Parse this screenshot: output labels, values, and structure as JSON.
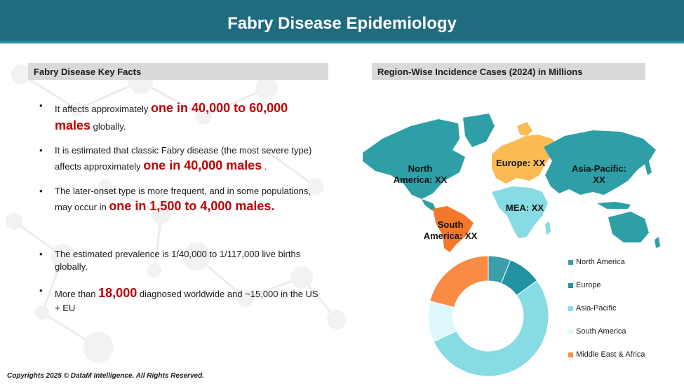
{
  "header": {
    "title": "Fabry Disease Epidemiology"
  },
  "left": {
    "title": "Fabry Disease Key Facts",
    "facts": [
      {
        "pre": "It affects approximately ",
        "hl": "one in 40,000 to 60,000 males",
        "post": " globally."
      },
      {
        "pre": "It is estimated that classic Fabry disease (the most severe type) affects approximately ",
        "hl": "one in 40,000 males",
        "post": " ."
      },
      {
        "pre": "The later-onset type is more frequent, and in some populations, may occur in ",
        "hl": "one in 1,500 to 4,000 males.",
        "post": ""
      },
      {
        "pre": "The estimated prevalence is 1/40,000 to 1/117,000 live births globally.",
        "hl": "",
        "post": ""
      },
      {
        "pre": "More than ",
        "hl": "18,000",
        "post": " diagnosed worldwide and ~15,000 in the US + EU"
      }
    ],
    "bullet": "•"
  },
  "right": {
    "title": "Region-Wise Incidence Cases (2024) in Millions",
    "map_labels": {
      "north_america": "North America: XX",
      "europe": "Europe: XX",
      "asia_pacific": "Asia-Pacific: XX",
      "mea": "MEA: XX",
      "south_america": "South America: XX"
    }
  },
  "colors": {
    "header_bg": "#1f6b80",
    "highlight": "#c00000",
    "north_america": "#3a9fa8",
    "europe": "#2193a2",
    "asia_pacific": "#86dbe4",
    "south_america": "#ddf8fa",
    "middle_east_africa": "#f98b45",
    "map_teal": "#2e9fa6",
    "map_europe": "#fbbb54",
    "map_mea": "#86dbe4",
    "map_south_america": "#f4782b"
  },
  "chart_data": {
    "type": "pie",
    "donut": true,
    "categories": [
      "North America",
      "Europe",
      "Asia-Pacific",
      "South America",
      "Middle East & Africa"
    ],
    "values": [
      6,
      9,
      53,
      11,
      21
    ],
    "legend": "right"
  },
  "footer": {
    "copyright": "Copyrights 2025 © DataM Intelligence. All Rights Reserved."
  }
}
